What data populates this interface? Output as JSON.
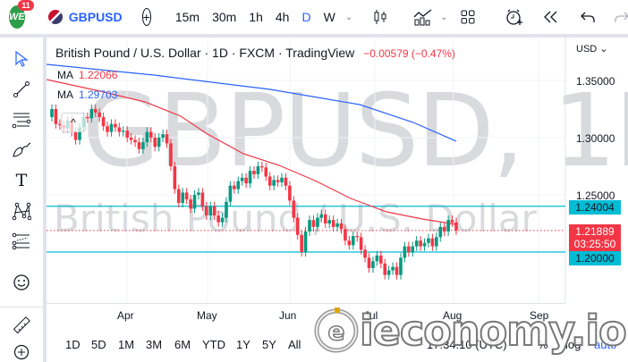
{
  "topbar": {
    "logo_text": "WE",
    "notification_count": "11",
    "symbol": "GBPUSD",
    "timeframes": [
      "15m",
      "30m",
      "1h",
      "4h",
      "D",
      "W"
    ],
    "active_timeframe": "D",
    "icons": [
      "add-symbol-icon",
      "timeframe-dropdown-icon",
      "candles-icon",
      "indicators-icon",
      "indicators-dropdown-icon",
      "layout-grid-icon",
      "alert-icon",
      "replay-icon",
      "undo-icon",
      "redo-icon"
    ]
  },
  "leftbar": {
    "tools": [
      "cursor-icon",
      "trend-line-icon",
      "fib-retracement-icon",
      "brush-icon",
      "text-icon",
      "pattern-icon",
      "prediction-icon",
      "emoji-icon",
      "ruler-icon",
      "zoom-in-icon"
    ]
  },
  "chart": {
    "title": "British Pound / U.S. Dollar · 1D · FXCM · TradingView",
    "change": "−0.00579 (−0.47%)",
    "ma1_label": "MA",
    "ma1_value": "1.22066",
    "ma2_label": "MA",
    "ma2_value": "1.29703",
    "collapse_icon": "^",
    "watermark_symbol": "GBPUSD, 1D",
    "watermark_name": "British Pound / U.S. Dollar",
    "currency": "USD ⌄",
    "price_labels": [
      "1.35000",
      "1.30000",
      "1.25000"
    ],
    "resistance_label": "1.24004",
    "support_label": "1.20000",
    "last_price": "1.21889",
    "countdown": "03:25:50",
    "months": [
      "Apr",
      "May",
      "Jun",
      "Jul",
      "Aug",
      "Sep"
    ],
    "colors": {
      "up": "#089981",
      "down": "#f23645",
      "ma_fast": "#f23645",
      "ma_slow": "#2962ff",
      "hline": "#00bcd4"
    }
  },
  "bottombar": {
    "ranges": [
      "1D",
      "5D",
      "1M",
      "3M",
      "6M",
      "YTD",
      "1Y",
      "5Y",
      "All"
    ],
    "time": "17:34:10 (UTC)",
    "percent": "%",
    "log": "log",
    "auto": "auto"
  },
  "watermark_brand": "ieconomy.io"
}
